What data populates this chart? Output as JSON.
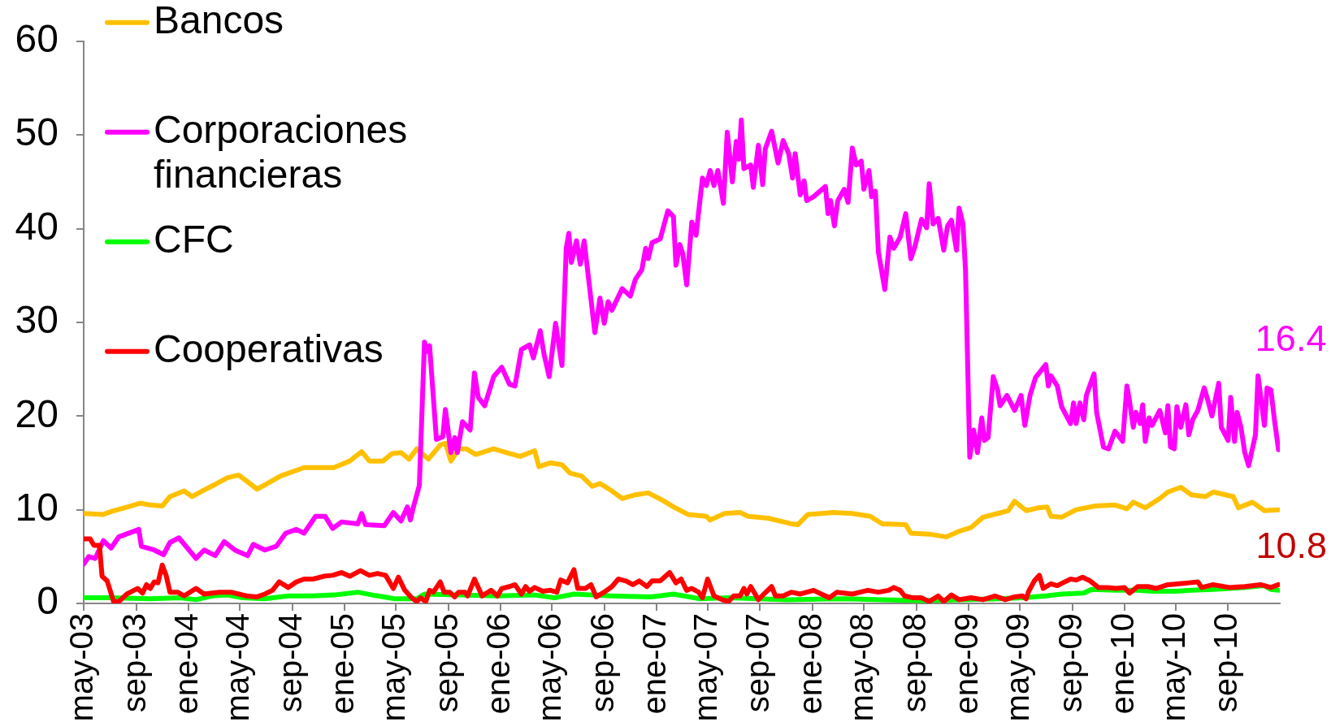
{
  "chart_data": {
    "type": "line",
    "legend": "top left",
    "xlim": [
      "2003-05-01",
      "2010-12-31"
    ],
    "xticks": [
      {
        "value": "2003-05-01",
        "label": "may-03"
      },
      {
        "value": "2003-09-01",
        "label": "sep-03"
      },
      {
        "value": "2004-01-01",
        "label": "ene-04"
      },
      {
        "value": "2004-05-01",
        "label": "may-04"
      },
      {
        "value": "2004-09-01",
        "label": "sep-04"
      },
      {
        "value": "2005-01-01",
        "label": "ene-05"
      },
      {
        "value": "2005-05-01",
        "label": "may-05"
      },
      {
        "value": "2005-09-01",
        "label": "sep-05"
      },
      {
        "value": "2006-01-01",
        "label": "ene-06"
      },
      {
        "value": "2006-05-01",
        "label": "may-06"
      },
      {
        "value": "2006-09-01",
        "label": "sep-06"
      },
      {
        "value": "2007-01-01",
        "label": "ene-07"
      },
      {
        "value": "2007-05-01",
        "label": "may-07"
      },
      {
        "value": "2007-09-01",
        "label": "sep-07"
      },
      {
        "value": "2008-01-01",
        "label": "ene-08"
      },
      {
        "value": "2008-05-01",
        "label": "may-08"
      },
      {
        "value": "2008-09-01",
        "label": "sep-08"
      },
      {
        "value": "2009-01-01",
        "label": "ene-09"
      },
      {
        "value": "2009-05-01",
        "label": "may-09"
      },
      {
        "value": "2009-09-01",
        "label": "sep-09"
      },
      {
        "value": "2010-01-01",
        "label": "ene-10"
      },
      {
        "value": "2010-05-01",
        "label": "may-10"
      },
      {
        "value": "2010-09-01",
        "label": "sep-10"
      }
    ],
    "ylim": [
      0,
      60
    ],
    "yticks": [
      0,
      10,
      20,
      30,
      40,
      50,
      60
    ],
    "annotations": [
      {
        "text": "16.4",
        "x": "2010-12-28",
        "y": 16.4
      },
      "10.8"
    ],
    "series": [
      {
        "name": "Bancos",
        "color": "#ffc000",
        "x": [
          "2003-05-01",
          "2003-06-16",
          "2003-07-04",
          "2003-08-19",
          "2003-09-10",
          "2003-10-04",
          "2003-11-01",
          "2003-11-19",
          "2003-12-22",
          "2004-01-10",
          "2004-02-07",
          "2004-03-04",
          "2004-04-01",
          "2004-04-28",
          "2004-06-10",
          "2004-07-04",
          "2004-08-04",
          "2004-09-28",
          "2004-12-07",
          "2005-01-13",
          "2005-02-10",
          "2005-02-28",
          "2005-04-01",
          "2005-04-22",
          "2005-05-13",
          "2005-06-01",
          "2005-06-19",
          "2005-07-16",
          "2005-08-13",
          "2005-08-25",
          "2005-09-07",
          "2005-09-25",
          "2005-10-13",
          "2005-11-04",
          "2005-12-16",
          "2006-01-22",
          "2006-02-16",
          "2006-03-22",
          "2006-04-01",
          "2006-04-28",
          "2006-05-25",
          "2006-06-13",
          "2006-07-10",
          "2006-08-04",
          "2006-08-22",
          "2006-09-19",
          "2006-10-13",
          "2006-11-13",
          "2006-12-13",
          "2007-01-16",
          "2007-02-10",
          "2007-03-16",
          "2007-04-28",
          "2007-05-07",
          "2007-06-10",
          "2007-07-16",
          "2007-08-04",
          "2007-09-19",
          "2007-11-13",
          "2007-11-28",
          "2007-12-22",
          "2008-01-22",
          "2008-02-19",
          "2008-04-04",
          "2008-05-16",
          "2008-06-13",
          "2008-08-07",
          "2008-08-19",
          "2008-10-01",
          "2008-11-10",
          "2008-12-10",
          "2009-01-07",
          "2009-02-04",
          "2009-03-10",
          "2009-04-04",
          "2009-04-19",
          "2009-05-16",
          "2009-06-13",
          "2009-07-04",
          "2009-07-13",
          "2009-08-07",
          "2009-09-10",
          "2009-10-25",
          "2009-12-10",
          "2010-01-07",
          "2010-01-22",
          "2010-02-19",
          "2010-03-25",
          "2010-04-13",
          "2010-05-13",
          "2010-06-07",
          "2010-07-10",
          "2010-07-28",
          "2010-09-13",
          "2010-09-25",
          "2010-10-28",
          "2010-11-25",
          "2010-12-28"
        ],
        "values": [
          9.6,
          9.5,
          9.8,
          10.4,
          10.7,
          10.5,
          10.4,
          11.4,
          12.0,
          11.4,
          12.1,
          12.7,
          13.4,
          13.7,
          12.2,
          12.8,
          13.6,
          14.5,
          14.5,
          15.2,
          16.2,
          15.2,
          15.2,
          16.0,
          16.1,
          15.4,
          16.5,
          15.4,
          16.9,
          17.1,
          15.2,
          16.5,
          16.5,
          15.9,
          16.5,
          16.0,
          15.7,
          16.3,
          14.6,
          15.0,
          14.8,
          13.9,
          13.6,
          12.5,
          12.8,
          12.0,
          11.2,
          11.6,
          11.8,
          11.0,
          10.3,
          9.5,
          9.3,
          8.9,
          9.6,
          9.7,
          9.3,
          9.1,
          8.5,
          8.4,
          9.5,
          9.6,
          9.7,
          9.6,
          9.3,
          8.5,
          8.4,
          7.5,
          7.4,
          7.1,
          7.7,
          8.1,
          9.2,
          9.6,
          9.9,
          10.9,
          9.9,
          10.2,
          10.3,
          9.3,
          9.2,
          10.0,
          10.4,
          10.5,
          10.1,
          10.8,
          10.2,
          11.2,
          11.9,
          12.4,
          11.6,
          11.4,
          11.9,
          11.4,
          10.2,
          10.8,
          9.9,
          10.0
        ]
      },
      {
        "name": "Corporaciones financieras",
        "color": "#ff00ff",
        "x": [
          "2003-05-01",
          "2003-05-13",
          "2003-05-28",
          "2003-06-16",
          "2003-07-04",
          "2003-07-22",
          "2003-09-07",
          "2003-09-13",
          "2003-10-13",
          "2003-11-04",
          "2003-11-19",
          "2003-12-10",
          "2004-01-19",
          "2004-02-07",
          "2004-03-04",
          "2004-03-25",
          "2004-04-19",
          "2004-05-19",
          "2004-06-01",
          "2004-06-28",
          "2004-07-25",
          "2004-08-16",
          "2004-09-10",
          "2004-09-28",
          "2004-10-25",
          "2004-11-16",
          "2004-12-04",
          "2004-12-25",
          "2005-02-01",
          "2005-02-10",
          "2005-02-19",
          "2005-04-04",
          "2005-04-25",
          "2005-05-13",
          "2005-05-28",
          "2005-06-04",
          "2005-06-10",
          "2005-06-25",
          "2005-07-07",
          "2005-07-13",
          "2005-07-19",
          "2005-08-04",
          "2005-08-19",
          "2005-08-25",
          "2005-09-07",
          "2005-09-16",
          "2005-09-22",
          "2005-10-04",
          "2005-10-22",
          "2005-11-01",
          "2005-11-10",
          "2005-11-25",
          "2005-12-16",
          "2006-01-04",
          "2006-01-22",
          "2006-02-04",
          "2006-02-19",
          "2006-03-10",
          "2006-03-19",
          "2006-04-04",
          "2006-04-13",
          "2006-04-25",
          "2006-05-10",
          "2006-05-25",
          "2006-06-04",
          "2006-06-10",
          "2006-06-16",
          "2006-06-28",
          "2006-07-07",
          "2006-07-16",
          "2006-07-28",
          "2006-08-10",
          "2006-08-22",
          "2006-09-01",
          "2006-09-10",
          "2006-09-19",
          "2006-10-13",
          "2006-11-01",
          "2006-11-13",
          "2006-11-28",
          "2006-12-07",
          "2006-12-13",
          "2006-12-22",
          "2007-01-10",
          "2007-01-28",
          "2007-02-10",
          "2007-02-16",
          "2007-02-25",
          "2007-03-04",
          "2007-03-13",
          "2007-03-25",
          "2007-04-04",
          "2007-04-19",
          "2007-04-28",
          "2007-05-07",
          "2007-05-16",
          "2007-05-25",
          "2007-06-07",
          "2007-06-16",
          "2007-06-28",
          "2007-07-07",
          "2007-07-13",
          "2007-07-19",
          "2007-07-25",
          "2007-08-10",
          "2007-08-16",
          "2007-08-28",
          "2007-09-07",
          "2007-09-13",
          "2007-09-28",
          "2007-10-13",
          "2007-10-25",
          "2007-11-07",
          "2007-11-16",
          "2007-11-22",
          "2007-12-04",
          "2007-12-13",
          "2007-12-19",
          "2008-01-04",
          "2008-02-01",
          "2008-02-07",
          "2008-02-13",
          "2008-02-22",
          "2008-03-01",
          "2008-03-16",
          "2008-03-25",
          "2008-04-04",
          "2008-04-13",
          "2008-04-25",
          "2008-05-01",
          "2008-05-13",
          "2008-05-19",
          "2008-05-28",
          "2008-06-04",
          "2008-06-19",
          "2008-07-01",
          "2008-07-10",
          "2008-07-25",
          "2008-08-07",
          "2008-08-19",
          "2008-08-28",
          "2008-09-13",
          "2008-09-25",
          "2008-10-01",
          "2008-10-10",
          "2008-10-22",
          "2008-11-04",
          "2008-11-13",
          "2008-11-22",
          "2008-12-04",
          "2008-12-10",
          "2008-12-19",
          "2008-12-25",
          "2009-01-04",
          "2009-01-13",
          "2009-01-22",
          "2009-02-01",
          "2009-02-07",
          "2009-02-16",
          "2009-02-28",
          "2009-03-10",
          "2009-03-16",
          "2009-04-01",
          "2009-04-19",
          "2009-05-04",
          "2009-05-13",
          "2009-05-25",
          "2009-06-07",
          "2009-07-01",
          "2009-07-07",
          "2009-07-13",
          "2009-07-28",
          "2009-08-07",
          "2009-08-28",
          "2009-09-04",
          "2009-09-10",
          "2009-09-19",
          "2009-09-28",
          "2009-10-04",
          "2009-10-22",
          "2009-10-28",
          "2009-11-13",
          "2009-11-25",
          "2009-12-10",
          "2009-12-28",
          "2010-01-07",
          "2010-01-13",
          "2010-01-22",
          "2010-01-28",
          "2010-02-07",
          "2010-02-13",
          "2010-02-19",
          "2010-02-28",
          "2010-03-07",
          "2010-03-25",
          "2010-04-07",
          "2010-04-13",
          "2010-04-19",
          "2010-04-28",
          "2010-05-04",
          "2010-05-13",
          "2010-05-25",
          "2010-06-01",
          "2010-06-10",
          "2010-06-22",
          "2010-07-07",
          "2010-07-16",
          "2010-07-25",
          "2010-08-10",
          "2010-08-16",
          "2010-09-01",
          "2010-09-07",
          "2010-09-16",
          "2010-09-22",
          "2010-10-01",
          "2010-10-10",
          "2010-10-19",
          "2010-11-04",
          "2010-11-10",
          "2010-11-25",
          "2010-12-01",
          "2010-12-10",
          "2010-12-19",
          "2010-12-28"
        ],
        "values": [
          4.2,
          5.0,
          4.8,
          6.7,
          5.9,
          7.1,
          7.9,
          6.1,
          5.7,
          5.2,
          6.5,
          7.0,
          4.8,
          5.7,
          5.1,
          6.6,
          5.7,
          5.1,
          6.3,
          5.7,
          6.1,
          7.5,
          7.9,
          7.5,
          9.3,
          9.3,
          8.0,
          8.7,
          8.5,
          9.6,
          8.4,
          8.3,
          9.7,
          8.8,
          10.3,
          8.9,
          10.1,
          12.6,
          27.9,
          26.9,
          27.5,
          17.5,
          17.8,
          20.7,
          16.1,
          17.7,
          16.1,
          19.4,
          18.5,
          24.6,
          22.0,
          21.1,
          24.2,
          25.2,
          23.4,
          23.2,
          27.1,
          27.6,
          26.2,
          29.1,
          26.6,
          24.2,
          29.9,
          25.4,
          37.9,
          39.5,
          36.4,
          38.7,
          36.2,
          38.7,
          34.0,
          28.9,
          32.6,
          29.9,
          32.2,
          31.3,
          33.6,
          32.8,
          34.6,
          35.6,
          37.9,
          36.8,
          38.5,
          38.9,
          41.9,
          41.3,
          36.1,
          38.3,
          37.3,
          34.0,
          40.7,
          39.3,
          45.4,
          44.6,
          46.2,
          44.6,
          46.2,
          42.7,
          50.3,
          45.0,
          49.3,
          47.4,
          51.6,
          46.4,
          46.8,
          44.4,
          48.9,
          44.7,
          48.5,
          50.4,
          47.0,
          49.4,
          48.0,
          45.4,
          48.0,
          43.6,
          45.1,
          43.0,
          43.4,
          44.5,
          41.6,
          43.0,
          40.3,
          43.0,
          44.2,
          42.8,
          48.6,
          46.8,
          47.2,
          44.2,
          46.2,
          43.4,
          44.0,
          37.5,
          33.5,
          39.1,
          37.9,
          39.1,
          41.6,
          36.8,
          38.0,
          41.0,
          40.1,
          44.8,
          40.5,
          41.1,
          37.7,
          40.3,
          40.9,
          37.7,
          42.2,
          40.5,
          35.6,
          15.6,
          18.5,
          16.1,
          19.8,
          17.4,
          17.7,
          24.2,
          22.8,
          21.1,
          22.2,
          20.6,
          22.2,
          19.0,
          22.2,
          24.1,
          25.5,
          23.2,
          24.3,
          23.2,
          21.0,
          19.2,
          21.4,
          19.2,
          21.4,
          19.6,
          22.2,
          24.5,
          20.4,
          16.7,
          16.5,
          18.4,
          17.3,
          23.2,
          21.6,
          18.8,
          20.4,
          19.2,
          21.2,
          17.3,
          19.8,
          19.0,
          20.6,
          18.2,
          21.1,
          16.7,
          16.5,
          21.0,
          18.8,
          21.2,
          18.0,
          19.6,
          20.6,
          23.0,
          21.6,
          20.0,
          23.5,
          18.8,
          17.4,
          22.0,
          17.3,
          20.4,
          18.8,
          16.1,
          14.7,
          18.0,
          24.3,
          19.0,
          23.0,
          22.8,
          19.4,
          16.4
        ]
      },
      {
        "name": "CFC",
        "color": "#00ff00",
        "x": [
          "2003-05-01",
          "2003-07-04",
          "2003-10-04",
          "2003-12-13",
          "2004-01-19",
          "2004-02-25",
          "2004-04-01",
          "2004-05-07",
          "2004-06-28",
          "2004-08-22",
          "2004-10-16",
          "2004-12-07",
          "2005-02-01",
          "2005-03-07",
          "2005-04-28",
          "2005-06-19",
          "2005-07-07",
          "2005-09-25",
          "2005-12-25",
          "2006-03-22",
          "2006-05-07",
          "2006-06-22",
          "2006-09-19",
          "2006-12-19",
          "2007-02-10",
          "2007-04-13",
          "2007-06-19",
          "2007-11-04",
          "2008-03-16",
          "2008-06-13",
          "2008-09-13",
          "2008-12-10",
          "2009-03-13",
          "2009-05-07",
          "2009-07-01",
          "2009-08-07",
          "2009-09-28",
          "2009-10-16",
          "2009-12-10",
          "2010-02-01",
          "2010-03-07",
          "2010-05-01",
          "2010-06-07",
          "2010-07-28",
          "2010-10-10",
          "2010-11-25",
          "2010-12-10",
          "2010-12-28"
        ],
        "values": [
          0.6,
          0.6,
          0.5,
          0.6,
          0.4,
          0.8,
          0.9,
          0.6,
          0.5,
          0.8,
          0.8,
          0.9,
          1.2,
          0.9,
          0.5,
          0.5,
          1.0,
          0.9,
          0.8,
          0.9,
          0.6,
          1.0,
          0.8,
          0.7,
          1.0,
          0.5,
          0.6,
          0.4,
          0.5,
          0.4,
          0.3,
          0.4,
          0.5,
          0.6,
          0.8,
          1.0,
          1.1,
          1.5,
          1.4,
          1.4,
          1.3,
          1.3,
          1.4,
          1.5,
          1.7,
          1.9,
          1.5,
          1.4
        ]
      },
      {
        "name": "Cooperativas",
        "color": "#ff0000",
        "x": [
          "2003-05-01",
          "2003-05-16",
          "2003-05-25",
          "2003-06-07",
          "2003-06-13",
          "2003-06-25",
          "2003-07-10",
          "2003-07-22",
          "2003-08-10",
          "2003-09-04",
          "2003-09-16",
          "2003-09-25",
          "2003-10-04",
          "2003-10-13",
          "2003-10-22",
          "2003-11-01",
          "2003-11-10",
          "2003-11-19",
          "2003-12-07",
          "2003-12-22",
          "2004-01-19",
          "2004-02-07",
          "2004-03-13",
          "2004-04-10",
          "2004-05-16",
          "2004-06-10",
          "2004-06-28",
          "2004-07-16",
          "2004-08-01",
          "2004-08-22",
          "2004-09-10",
          "2004-09-28",
          "2004-10-19",
          "2004-11-13",
          "2004-12-04",
          "2004-12-25",
          "2005-01-13",
          "2005-02-07",
          "2005-02-28",
          "2005-03-19",
          "2005-04-07",
          "2005-04-25",
          "2005-05-07",
          "2005-05-22",
          "2005-06-07",
          "2005-06-19",
          "2005-06-28",
          "2005-07-10",
          "2005-07-19",
          "2005-07-28",
          "2005-08-13",
          "2005-08-22",
          "2005-09-04",
          "2005-09-16",
          "2005-09-25",
          "2005-10-10",
          "2005-10-16",
          "2005-11-01",
          "2005-11-19",
          "2005-12-10",
          "2005-12-25",
          "2006-01-04",
          "2006-01-22",
          "2006-02-04",
          "2006-02-19",
          "2006-03-01",
          "2006-03-10",
          "2006-03-22",
          "2006-04-10",
          "2006-04-28",
          "2006-05-13",
          "2006-05-22",
          "2006-06-07",
          "2006-06-22",
          "2006-07-01",
          "2006-07-19",
          "2006-08-01",
          "2006-08-13",
          "2006-09-01",
          "2006-09-19",
          "2006-10-04",
          "2006-10-22",
          "2006-11-07",
          "2006-11-22",
          "2006-12-10",
          "2006-12-22",
          "2007-01-10",
          "2007-02-01",
          "2007-02-16",
          "2007-02-28",
          "2007-03-13",
          "2007-03-25",
          "2007-04-10",
          "2007-04-19",
          "2007-05-01",
          "2007-05-16",
          "2007-06-04",
          "2007-06-19",
          "2007-07-01",
          "2007-07-16",
          "2007-07-25",
          "2007-08-01",
          "2007-08-10",
          "2007-08-28",
          "2007-09-10",
          "2007-09-28",
          "2007-10-07",
          "2007-10-25",
          "2007-11-13",
          "2007-12-04",
          "2008-01-04",
          "2008-02-10",
          "2008-02-28",
          "2008-04-04",
          "2008-04-22",
          "2008-05-10",
          "2008-06-04",
          "2008-06-28",
          "2008-07-10",
          "2008-07-25",
          "2008-08-04",
          "2008-08-25",
          "2008-09-13",
          "2008-10-01",
          "2008-10-22",
          "2008-11-04",
          "2008-11-22",
          "2008-12-10",
          "2009-01-07",
          "2009-02-04",
          "2009-03-04",
          "2009-03-28",
          "2009-04-19",
          "2009-05-07",
          "2009-05-16",
          "2009-05-22",
          "2009-06-04",
          "2009-06-16",
          "2009-06-25",
          "2009-07-13",
          "2009-07-28",
          "2009-08-10",
          "2009-08-28",
          "2009-09-10",
          "2009-09-25",
          "2009-10-13",
          "2009-11-01",
          "2009-11-22",
          "2009-12-13",
          "2010-01-01",
          "2010-01-13",
          "2010-02-01",
          "2010-02-25",
          "2010-03-16",
          "2010-04-13",
          "2010-05-10",
          "2010-06-01",
          "2010-06-22",
          "2010-07-01",
          "2010-07-28",
          "2010-09-04",
          "2010-10-10",
          "2010-11-16",
          "2010-12-10",
          "2010-12-28"
        ],
        "values": [
          6.9,
          6.9,
          6.2,
          6.2,
          2.9,
          2.4,
          0.2,
          0.2,
          1.0,
          1.6,
          1.1,
          2.0,
          1.6,
          2.3,
          2.2,
          4.1,
          3.0,
          1.2,
          1.2,
          0.8,
          1.6,
          1.0,
          1.2,
          1.2,
          0.8,
          0.7,
          1.0,
          1.4,
          2.3,
          1.7,
          2.3,
          2.6,
          2.6,
          2.9,
          3.0,
          3.3,
          2.9,
          3.5,
          3.0,
          3.2,
          3.0,
          1.6,
          2.8,
          1.4,
          0.6,
          0.2,
          0.6,
          0.2,
          1.4,
          1.2,
          2.3,
          1.2,
          1.2,
          0.7,
          1.2,
          1.2,
          0.8,
          2.6,
          0.8,
          1.4,
          0.8,
          1.6,
          1.8,
          2.0,
          1.0,
          1.8,
          1.3,
          1.7,
          1.3,
          1.4,
          1.2,
          2.5,
          2.2,
          3.6,
          1.6,
          1.6,
          2.0,
          0.7,
          1.2,
          1.8,
          2.6,
          2.4,
          2.0,
          2.4,
          1.8,
          2.4,
          2.4,
          3.3,
          2.2,
          2.6,
          1.4,
          1.6,
          1.2,
          0.6,
          2.6,
          0.8,
          0.4,
          0.2,
          0.8,
          0.8,
          1.6,
          1.0,
          1.8,
          0.4,
          1.0,
          1.8,
          0.8,
          0.8,
          1.2,
          1.0,
          1.4,
          0.6,
          1.2,
          1.0,
          1.2,
          1.4,
          1.2,
          1.4,
          1.7,
          1.4,
          0.8,
          0.6,
          0.6,
          0.2,
          0.8,
          0.2,
          0.9,
          0.4,
          0.6,
          0.4,
          0.8,
          0.4,
          0.7,
          0.8,
          0.5,
          1.3,
          2.4,
          3.0,
          1.6,
          2.1,
          1.9,
          2.2,
          2.6,
          2.5,
          2.8,
          2.4,
          1.7,
          1.7,
          1.6,
          1.7,
          1.1,
          1.8,
          1.8,
          1.6,
          2.0,
          2.1,
          2.2,
          2.3,
          1.7,
          2.0,
          1.7,
          1.8,
          2.0,
          1.7,
          2.0
        ]
      }
    ]
  }
}
